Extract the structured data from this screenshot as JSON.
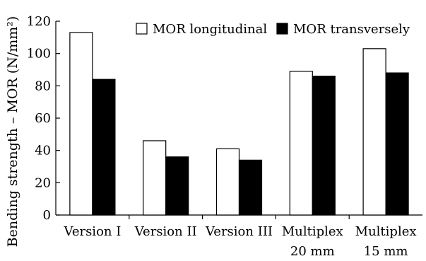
{
  "chart_data": {
    "type": "bar",
    "title": "",
    "xlabel": "",
    "ylabel": "Bending strength – MOR (N/mm²)",
    "ylim": [
      0,
      120
    ],
    "yticks": [
      0,
      20,
      40,
      60,
      80,
      100,
      120
    ],
    "grid": false,
    "legend_position": "top-right",
    "categories": [
      {
        "line1": "Version I",
        "line2": ""
      },
      {
        "line1": "Version II",
        "line2": ""
      },
      {
        "line1": "Version III",
        "line2": ""
      },
      {
        "line1": "Multiplex",
        "line2": "20 mm"
      },
      {
        "line1": "Multiplex",
        "line2": "15 mm"
      }
    ],
    "series": [
      {
        "name": "MOR longitudinal",
        "values": [
          113,
          46,
          41,
          89,
          103
        ],
        "fill": "#ffffff",
        "stroke": "#000000"
      },
      {
        "name": "MOR transversely",
        "values": [
          84,
          36,
          34,
          86,
          88
        ],
        "fill": "#000000",
        "stroke": "#000000"
      }
    ]
  }
}
